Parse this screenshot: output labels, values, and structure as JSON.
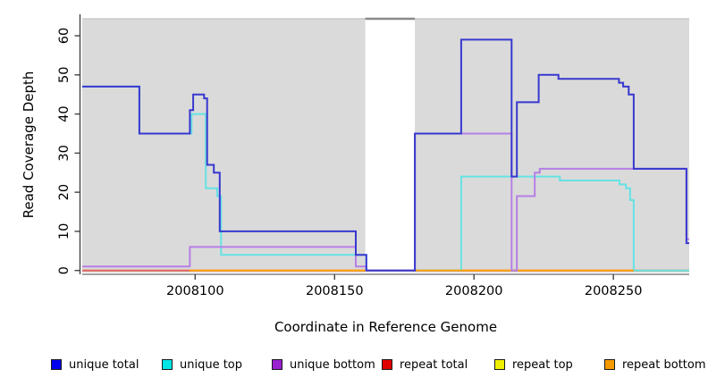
{
  "figure": {
    "xlabel": "Coordinate in Reference Genome",
    "ylabel": "Read Coverage Depth"
  },
  "legend": [
    {
      "name": "unique-total",
      "label": "unique total",
      "color": "#0000EE"
    },
    {
      "name": "unique-top",
      "label": "unique top",
      "color": "#00E5E5"
    },
    {
      "name": "unique-bottom",
      "label": "unique bottom",
      "color": "#9A20D0"
    },
    {
      "name": "repeat-total",
      "label": "repeat total",
      "color": "#E00000"
    },
    {
      "name": "repeat-top",
      "label": "repeat top",
      "color": "#EEEE00"
    },
    {
      "name": "repeat-bottom",
      "label": "repeat bottom",
      "color": "#F59B00"
    }
  ],
  "chart_data": {
    "type": "line",
    "step": "post",
    "title": "",
    "xlabel": "Coordinate in Reference Genome",
    "ylabel": "Read Coverage Depth",
    "xlim": [
      2008059.5,
      2008277.2
    ],
    "ylim": [
      0,
      64.3
    ],
    "xticks": [
      2008100,
      2008150,
      2008200,
      2008250
    ],
    "yticks": [
      0,
      10,
      20,
      30,
      40,
      50,
      60
    ],
    "grid": false,
    "legend_position": "bottom",
    "background": {
      "panel_color": "#DADADA",
      "panel_edge_color": "#C9C9C9",
      "covered_regions": [
        [
          2008059.5,
          2008161.0
        ],
        [
          2008178.8,
          2008277.2
        ]
      ],
      "gap_region": [
        2008161.0,
        2008178.8
      ],
      "gap_top_line_color": "#8A8A8A"
    },
    "series": [
      {
        "name": "repeat-top",
        "label": "repeat top",
        "line_color": "#EEEE00",
        "points": [
          [
            2008059.5,
            0
          ],
          [
            2008277.2,
            0
          ]
        ]
      },
      {
        "name": "repeat-total",
        "label": "repeat total",
        "line_color": "#E06070",
        "points": [
          [
            2008059.5,
            0
          ],
          [
            2008277.2,
            0
          ]
        ]
      },
      {
        "name": "unique-top",
        "label": "unique top",
        "line_color": "#66E2E2",
        "points": [
          [
            2008059.5,
            47
          ],
          [
            2008080,
            35
          ],
          [
            2008098.7,
            40
          ],
          [
            2008103.8,
            21
          ],
          [
            2008107.9,
            19
          ],
          [
            2008109.3,
            4
          ],
          [
            2008161.4,
            0
          ],
          [
            2008195.4,
            24
          ],
          [
            2008230.8,
            23
          ],
          [
            2008252.2,
            22
          ],
          [
            2008254.5,
            21
          ],
          [
            2008256,
            18
          ],
          [
            2008257.3,
            0
          ],
          [
            2008277.2,
            0
          ]
        ]
      },
      {
        "name": "repeat-bottom",
        "label": "repeat bottom",
        "line_color": "#FFA010",
        "points": [
          [
            2008098,
            0
          ],
          [
            2008257.3,
            0
          ]
        ]
      },
      {
        "name": "unique-bottom",
        "label": "unique bottom",
        "line_color": "#B67FE4",
        "points": [
          [
            2008059.5,
            1
          ],
          [
            2008098.1,
            6
          ],
          [
            2008157.6,
            1
          ],
          [
            2008161.4,
            0
          ],
          [
            2008178.8,
            35
          ],
          [
            2008213.5,
            0
          ],
          [
            2008215.4,
            19
          ],
          [
            2008221.8,
            25
          ],
          [
            2008223.6,
            26
          ],
          [
            2008276.2,
            8
          ],
          [
            2008277.2,
            8
          ]
        ]
      },
      {
        "name": "unique-total",
        "label": "unique total",
        "line_color": "#3838CF",
        "points": [
          [
            2008059.5,
            47
          ],
          [
            2008080,
            35
          ],
          [
            2008098.1,
            41
          ],
          [
            2008099.3,
            45
          ],
          [
            2008103.2,
            44
          ],
          [
            2008104.3,
            27
          ],
          [
            2008106.7,
            25
          ],
          [
            2008108.8,
            10
          ],
          [
            2008157.6,
            4
          ],
          [
            2008161.4,
            0
          ],
          [
            2008178.8,
            35
          ],
          [
            2008195.4,
            59
          ],
          [
            2008213.5,
            24
          ],
          [
            2008215.4,
            43
          ],
          [
            2008223.2,
            50
          ],
          [
            2008230.3,
            49
          ],
          [
            2008252,
            48
          ],
          [
            2008253.5,
            47
          ],
          [
            2008255.5,
            45
          ],
          [
            2008257.3,
            26
          ],
          [
            2008276.2,
            7
          ],
          [
            2008277.2,
            7
          ]
        ]
      }
    ]
  }
}
